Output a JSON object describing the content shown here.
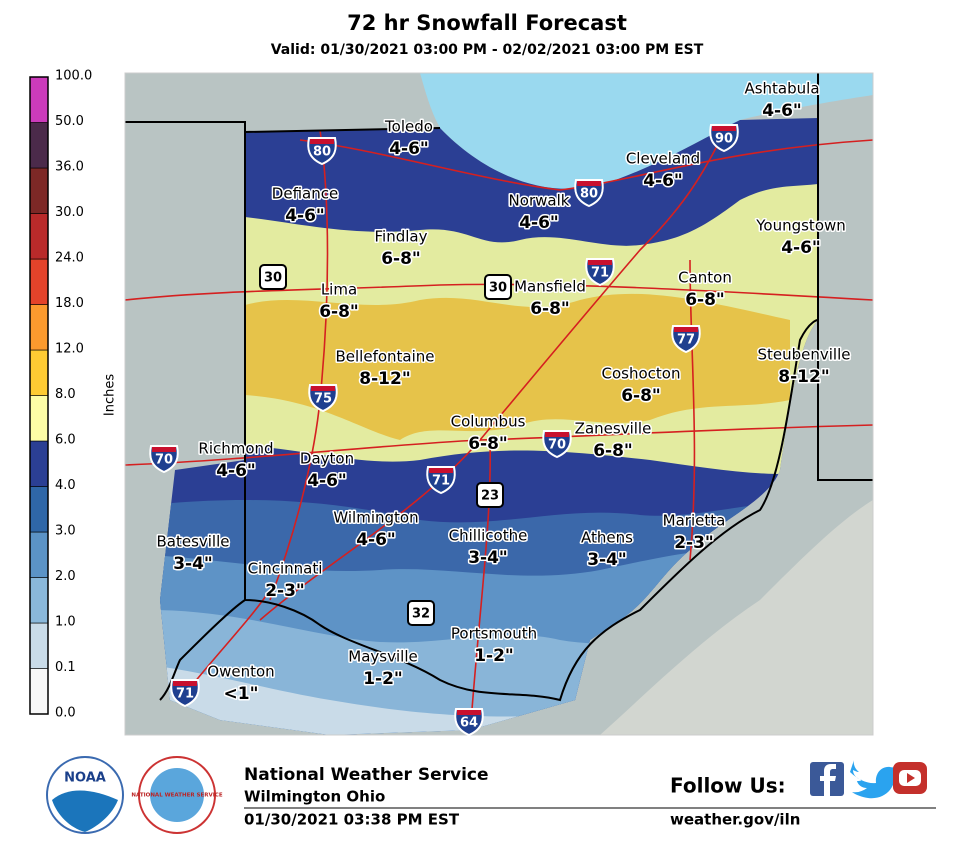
{
  "header": {
    "title": "72 hr Snowfall Forecast",
    "subtitle": "Valid: 01/30/2021 03:00 PM - 02/02/2021 03:00 PM EST"
  },
  "legend": {
    "label": "Inches",
    "ticks": [
      "0.0",
      "0.1",
      "1.0",
      "2.0",
      "3.0",
      "4.0",
      "6.0",
      "8.0",
      "12.0",
      "18.0",
      "24.0",
      "30.0",
      "36.0",
      "50.0",
      "100.0"
    ],
    "colors": [
      "#f7f7f7",
      "#c9dbe8",
      "#8ab8da",
      "#5b93c6",
      "#2f67a8",
      "#2b3f94",
      "#fdfda6",
      "#fecb33",
      "#fb9a2e",
      "#e4432a",
      "#b92a2a",
      "#7d2826",
      "#4b2a4a",
      "#cc3bbb"
    ]
  },
  "cities": [
    {
      "name": "Ashtabula",
      "amount": "4-6\""
    },
    {
      "name": "Toledo",
      "amount": "4-6\""
    },
    {
      "name": "Cleveland",
      "amount": "4-6\""
    },
    {
      "name": "Defiance",
      "amount": "4-6\""
    },
    {
      "name": "Norwalk",
      "amount": "4-6\""
    },
    {
      "name": "Youngstown",
      "amount": "4-6\""
    },
    {
      "name": "Findlay",
      "amount": "6-8\""
    },
    {
      "name": "Lima",
      "amount": "6-8\""
    },
    {
      "name": "Mansfield",
      "amount": "6-8\""
    },
    {
      "name": "Canton",
      "amount": "6-8\""
    },
    {
      "name": "Bellefontaine",
      "amount": "8-12\""
    },
    {
      "name": "Coshocton",
      "amount": "6-8\""
    },
    {
      "name": "Steubenville",
      "amount": "8-12\""
    },
    {
      "name": "Columbus",
      "amount": "6-8\""
    },
    {
      "name": "Zanesville",
      "amount": "6-8\""
    },
    {
      "name": "Richmond",
      "amount": "4-6\""
    },
    {
      "name": "Dayton",
      "amount": "4-6\""
    },
    {
      "name": "Wilmington",
      "amount": "4-6\""
    },
    {
      "name": "Chillicothe",
      "amount": "3-4\""
    },
    {
      "name": "Athens",
      "amount": "3-4\""
    },
    {
      "name": "Marietta",
      "amount": "2-3\""
    },
    {
      "name": "Batesville",
      "amount": "3-4\""
    },
    {
      "name": "Cincinnati",
      "amount": "2-3\""
    },
    {
      "name": "Portsmouth",
      "amount": "1-2\""
    },
    {
      "name": "Maysville",
      "amount": "1-2\""
    },
    {
      "name": "Owenton",
      "amount": "<1\""
    }
  ],
  "highways": [
    {
      "label": "80",
      "kind": "interstate"
    },
    {
      "label": "90",
      "kind": "interstate"
    },
    {
      "label": "80",
      "kind": "interstate"
    },
    {
      "label": "71",
      "kind": "interstate"
    },
    {
      "label": "30",
      "kind": "us"
    },
    {
      "label": "30",
      "kind": "us"
    },
    {
      "label": "77",
      "kind": "interstate"
    },
    {
      "label": "75",
      "kind": "interstate"
    },
    {
      "label": "70",
      "kind": "interstate"
    },
    {
      "label": "70",
      "kind": "interstate"
    },
    {
      "label": "71",
      "kind": "interstate"
    },
    {
      "label": "23",
      "kind": "us"
    },
    {
      "label": "32",
      "kind": "us"
    },
    {
      "label": "71",
      "kind": "interstate"
    },
    {
      "label": "64",
      "kind": "interstate"
    }
  ],
  "footer": {
    "logo_noaa": "NOAA",
    "logo_nws": "NATIONAL WEATHER SERVICE",
    "organization": "National Weather Service",
    "office": "Wilmington Ohio",
    "issued": "01/30/2021 03:38 PM EST",
    "follow": "Follow Us:",
    "url": "weather.gov/iln"
  }
}
